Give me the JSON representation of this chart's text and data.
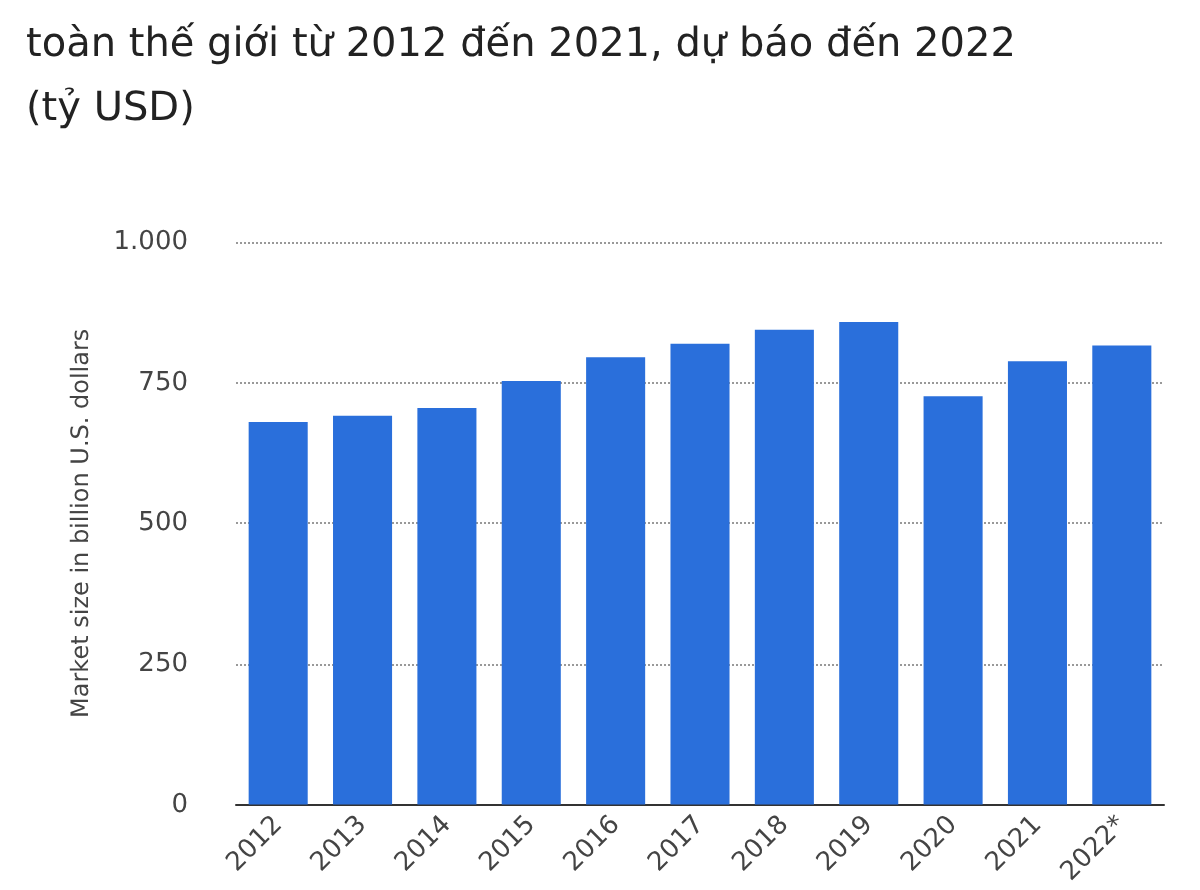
{
  "chart_data": {
    "type": "bar",
    "title": "toàn thế giới từ 2012 đến 2021, dự báo đến 2022\n(tỷ USD)",
    "ylabel": "Market size in billion U.S. dollars",
    "categories": [
      "2012",
      "2013",
      "2014",
      "2015",
      "2016",
      "2017",
      "2018",
      "2019",
      "2020",
      "2021",
      "2022*"
    ],
    "values": [
      680,
      691,
      705,
      753,
      795,
      819,
      844,
      858,
      726,
      788,
      816
    ],
    "color": "#2a6fdb",
    "ylim": [
      0,
      1000
    ],
    "yticks": [
      0,
      250,
      500,
      750,
      {
        "value": 1000,
        "label": "1.000"
      }
    ],
    "grid": "y"
  }
}
